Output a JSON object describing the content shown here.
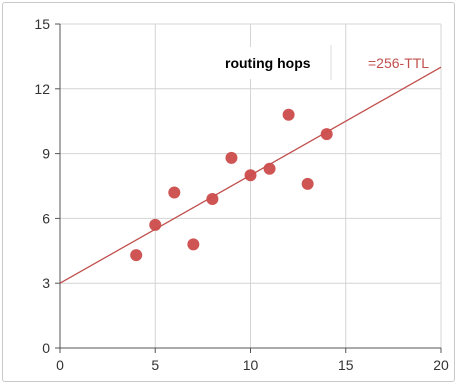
{
  "chart_data": {
    "type": "scatter",
    "xlim": [
      0,
      20
    ],
    "ylim": [
      0,
      15
    ],
    "x_ticks": [
      0,
      5,
      10,
      15,
      20
    ],
    "y_ticks": [
      0,
      3,
      6,
      9,
      12,
      15
    ],
    "grid": true,
    "legend_position": "top-right",
    "series": [
      {
        "name": "routing hops",
        "type": "scatter",
        "color": "#cc4c4c",
        "points": [
          {
            "x": 4,
            "y": 4.3
          },
          {
            "x": 5,
            "y": 5.7
          },
          {
            "x": 6,
            "y": 7.2
          },
          {
            "x": 7,
            "y": 4.8
          },
          {
            "x": 8,
            "y": 6.9
          },
          {
            "x": 9,
            "y": 8.8
          },
          {
            "x": 10,
            "y": 8.0
          },
          {
            "x": 11,
            "y": 8.3
          },
          {
            "x": 12,
            "y": 10.8
          },
          {
            "x": 13,
            "y": 7.6
          },
          {
            "x": 14,
            "y": 9.9
          }
        ]
      },
      {
        "name": "=256-TTL",
        "type": "line",
        "color": "#c0504d",
        "points": [
          {
            "x": 0,
            "y": 3.0
          },
          {
            "x": 20,
            "y": 13.0
          }
        ]
      }
    ]
  }
}
